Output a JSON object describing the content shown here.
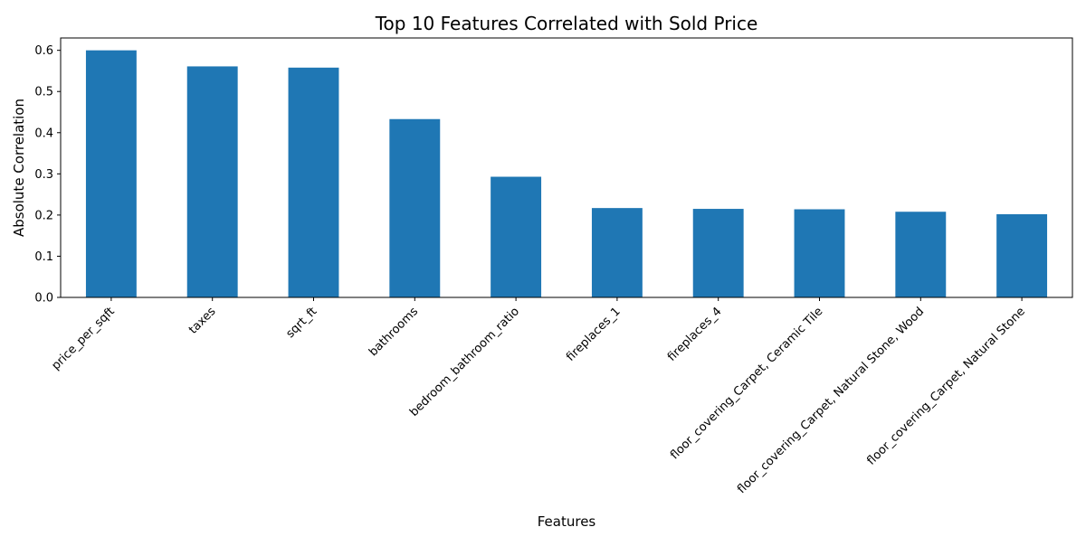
{
  "chart_data": {
    "type": "bar",
    "title": "Top 10 Features Correlated with Sold Price",
    "xlabel": "Features",
    "ylabel": "Absolute Correlation",
    "categories": [
      "price_per_sqft",
      "taxes",
      "sqrt_ft",
      "bathrooms",
      "bedroom_bathroom_ratio",
      "fireplaces_1",
      "fireplaces_4",
      "floor_covering_Carpet, Ceramic Tile",
      "floor_covering_Carpet, Natural Stone, Wood",
      "floor_covering_Carpet, Natural Stone"
    ],
    "values": [
      0.6,
      0.561,
      0.558,
      0.433,
      0.293,
      0.217,
      0.215,
      0.214,
      0.208,
      0.202
    ],
    "ylim": [
      0,
      0.63
    ],
    "yticks": [
      "0.0",
      "0.1",
      "0.2",
      "0.3",
      "0.4",
      "0.5",
      "0.6"
    ],
    "bar_color": "#1f77b4",
    "grid": false,
    "legend": "none"
  }
}
